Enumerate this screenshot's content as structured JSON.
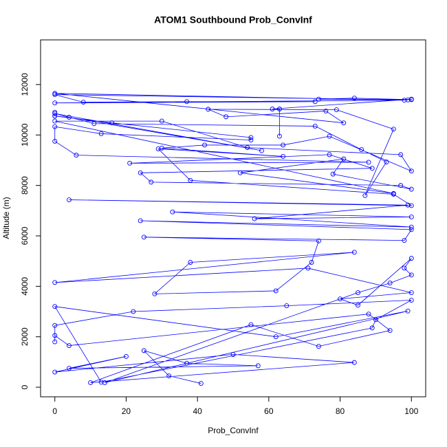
{
  "chart_data": {
    "type": "line",
    "title": "ATOM1 Southbound Prob_ConvInf",
    "x_label": "Prob_ConvInf",
    "y_label": "Altitude (m)",
    "xlim": [
      -4,
      104
    ],
    "ylim": [
      -380,
      13770
    ],
    "xticks": [
      0,
      20,
      40,
      60,
      80,
      100
    ],
    "yticks": [
      0,
      2000,
      4000,
      6000,
      8000,
      10000,
      12000
    ],
    "x": [
      41,
      32,
      25,
      37,
      57,
      4,
      20,
      0,
      50,
      84,
      10,
      55,
      74,
      94,
      88,
      4,
      0,
      0,
      0,
      22,
      65,
      100,
      90,
      89,
      13,
      0,
      62,
      99,
      14,
      85,
      94,
      100,
      98,
      100,
      85,
      80,
      100,
      71,
      0,
      84,
      38,
      28,
      62,
      72,
      74,
      25,
      98,
      100,
      24,
      100,
      33,
      100,
      56,
      99,
      4,
      100,
      95,
      38,
      29,
      64,
      30,
      42,
      64,
      77,
      100,
      97,
      54,
      30,
      0,
      95,
      52,
      81,
      78,
      100,
      97,
      27,
      24,
      89,
      77,
      21,
      88,
      6,
      0,
      0,
      13,
      55,
      55,
      16,
      0,
      0,
      0,
      4,
      58,
      0,
      11,
      73,
      86,
      93,
      87,
      95,
      79,
      43,
      48,
      76,
      81,
      0,
      98,
      0,
      73,
      37,
      8,
      0,
      99,
      74,
      84,
      100,
      100,
      61,
      63,
      63
    ],
    "series": [
      {
        "name": "Prob_ConvInf",
        "color": "#0000ff",
        "values": [
          150,
          450,
          1450,
          950,
          850,
          750,
          1220,
          600,
          1300,
          980,
          180,
          2480,
          1620,
          2250,
          2900,
          1650,
          2050,
          1800,
          2450,
          3000,
          3230,
          3450,
          2680,
          2350,
          200,
          3200,
          2000,
          3020,
          180,
          3750,
          4130,
          4450,
          4720,
          5110,
          3250,
          3500,
          3750,
          4720,
          4150,
          5350,
          4950,
          3700,
          3820,
          4950,
          5800,
          5950,
          5820,
          6250,
          6600,
          6350,
          6950,
          6750,
          6680,
          7220,
          7430,
          7200,
          7650,
          8200,
          9450,
          9150,
          9480,
          9600,
          9600,
          9950,
          8570,
          9220,
          9500,
          10550,
          10550,
          7680,
          8500,
          9050,
          8450,
          7850,
          8000,
          8130,
          8500,
          8680,
          9220,
          8880,
          8920,
          9200,
          9750,
          10330,
          10050,
          9800,
          9900,
          10480,
          10750,
          10900,
          10750,
          10700,
          9380,
          10850,
          10450,
          10350,
          9420,
          8930,
          7600,
          10230,
          11000,
          11020,
          10720,
          10950,
          10480,
          11650,
          11380,
          11270,
          11320,
          11320,
          11300,
          11600,
          11390,
          11420,
          11460,
          11400,
          11420,
          11030,
          11030,
          9950
        ]
      }
    ]
  }
}
